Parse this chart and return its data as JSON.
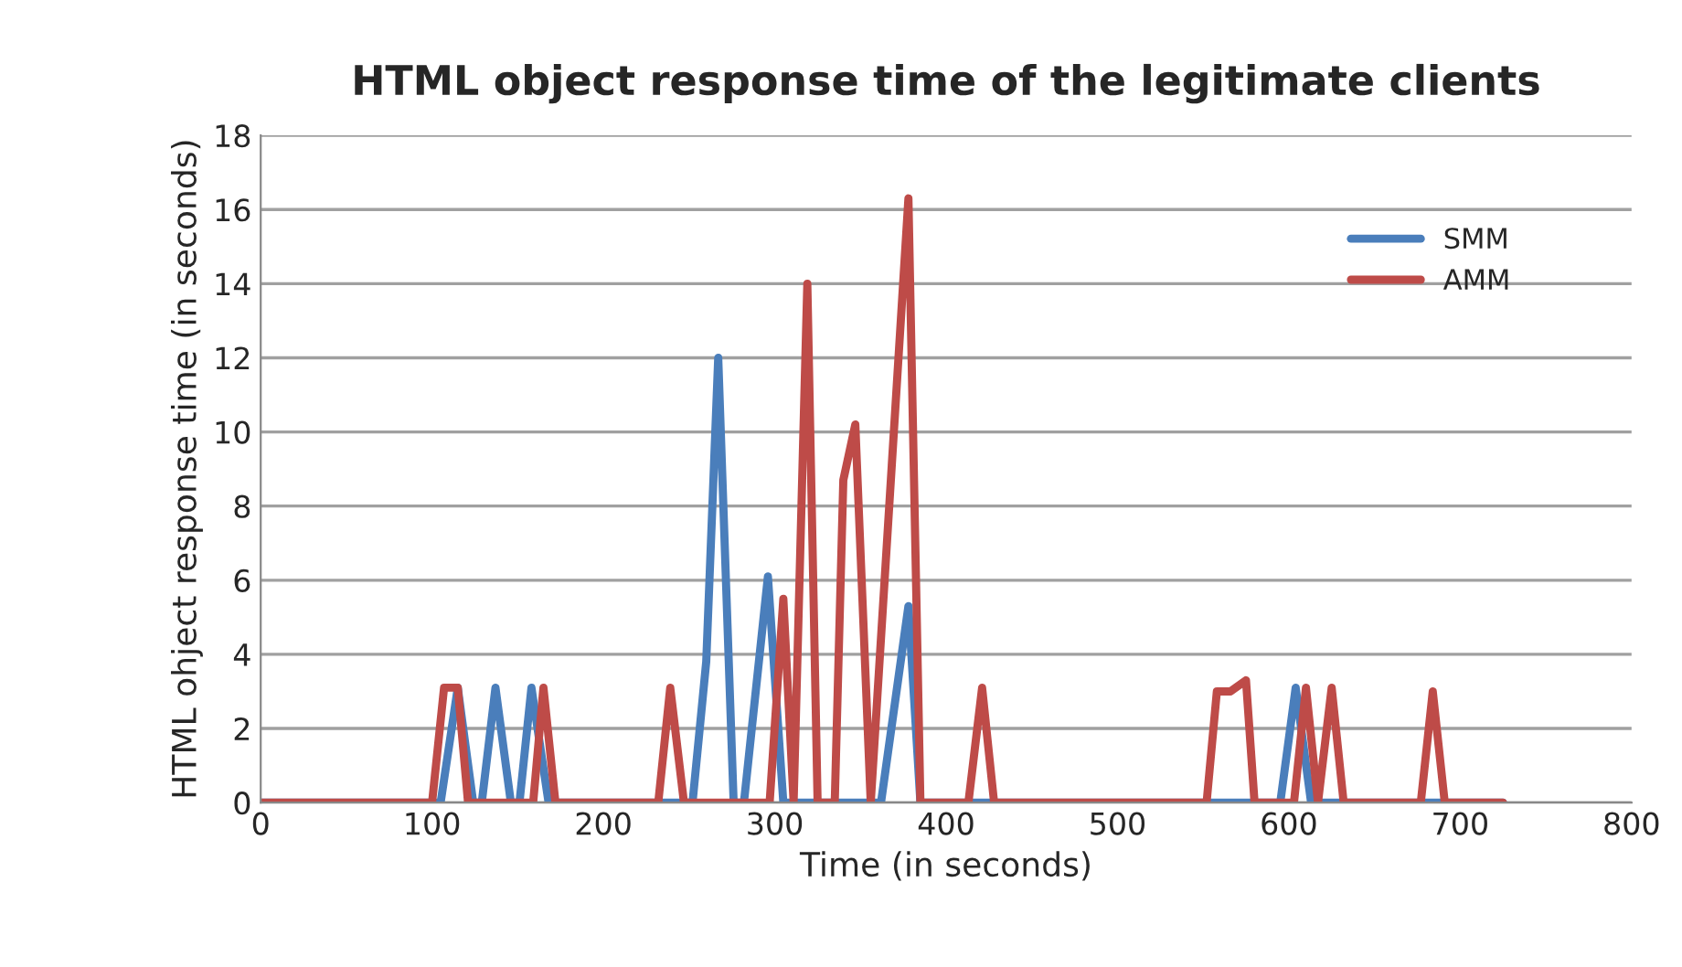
{
  "chart_data": {
    "type": "line",
    "title": "HTML object response time of the legitimate clients",
    "xlabel": "Time (in seconds)",
    "ylabel": "HTML ohject response time (in seconds)",
    "xlim": [
      0,
      800
    ],
    "xticks": [
      0,
      100,
      200,
      300,
      400,
      500,
      600,
      700,
      800
    ],
    "ylim": [
      0,
      18
    ],
    "yticks": [
      0,
      2,
      4,
      6,
      8,
      10,
      12,
      14,
      16,
      18
    ],
    "grid": "y",
    "legend": "top right",
    "marker": "none",
    "line_style": "solid",
    "series": [
      {
        "name": "SMM",
        "color": "#4a7ebb",
        "x": [
          0,
          105,
          115,
          124,
          129,
          137,
          146,
          151,
          158,
          168,
          252,
          260,
          267,
          276,
          282,
          296,
          305,
          362,
          378,
          385,
          595,
          604,
          613,
          725
        ],
        "values": [
          0,
          0,
          3.1,
          0,
          0,
          3.1,
          0,
          0,
          3.1,
          0,
          0,
          3.8,
          12,
          0,
          0,
          6.1,
          0,
          0,
          5.3,
          0,
          0,
          3.1,
          0,
          0
        ]
      },
      {
        "name": "AMM",
        "color": "#be4b48",
        "x": [
          0,
          100,
          107,
          115,
          121,
          159,
          165,
          172,
          232,
          239,
          247,
          297,
          305,
          311,
          319,
          325,
          335,
          340,
          347,
          356,
          378,
          385,
          413,
          421,
          428,
          552,
          558,
          566,
          575,
          580,
          603,
          610,
          617,
          625,
          632,
          677,
          684,
          691,
          725
        ],
        "values": [
          0,
          0,
          3.1,
          3.1,
          0,
          0,
          3.1,
          0,
          0,
          3.1,
          0,
          0,
          5.5,
          0,
          14,
          0,
          0,
          8.7,
          10.2,
          0,
          16.3,
          0,
          0,
          3.1,
          0,
          0,
          3.0,
          3.0,
          3.3,
          0,
          0,
          3.1,
          0,
          3.1,
          0,
          0,
          3.0,
          0,
          0
        ]
      }
    ]
  }
}
